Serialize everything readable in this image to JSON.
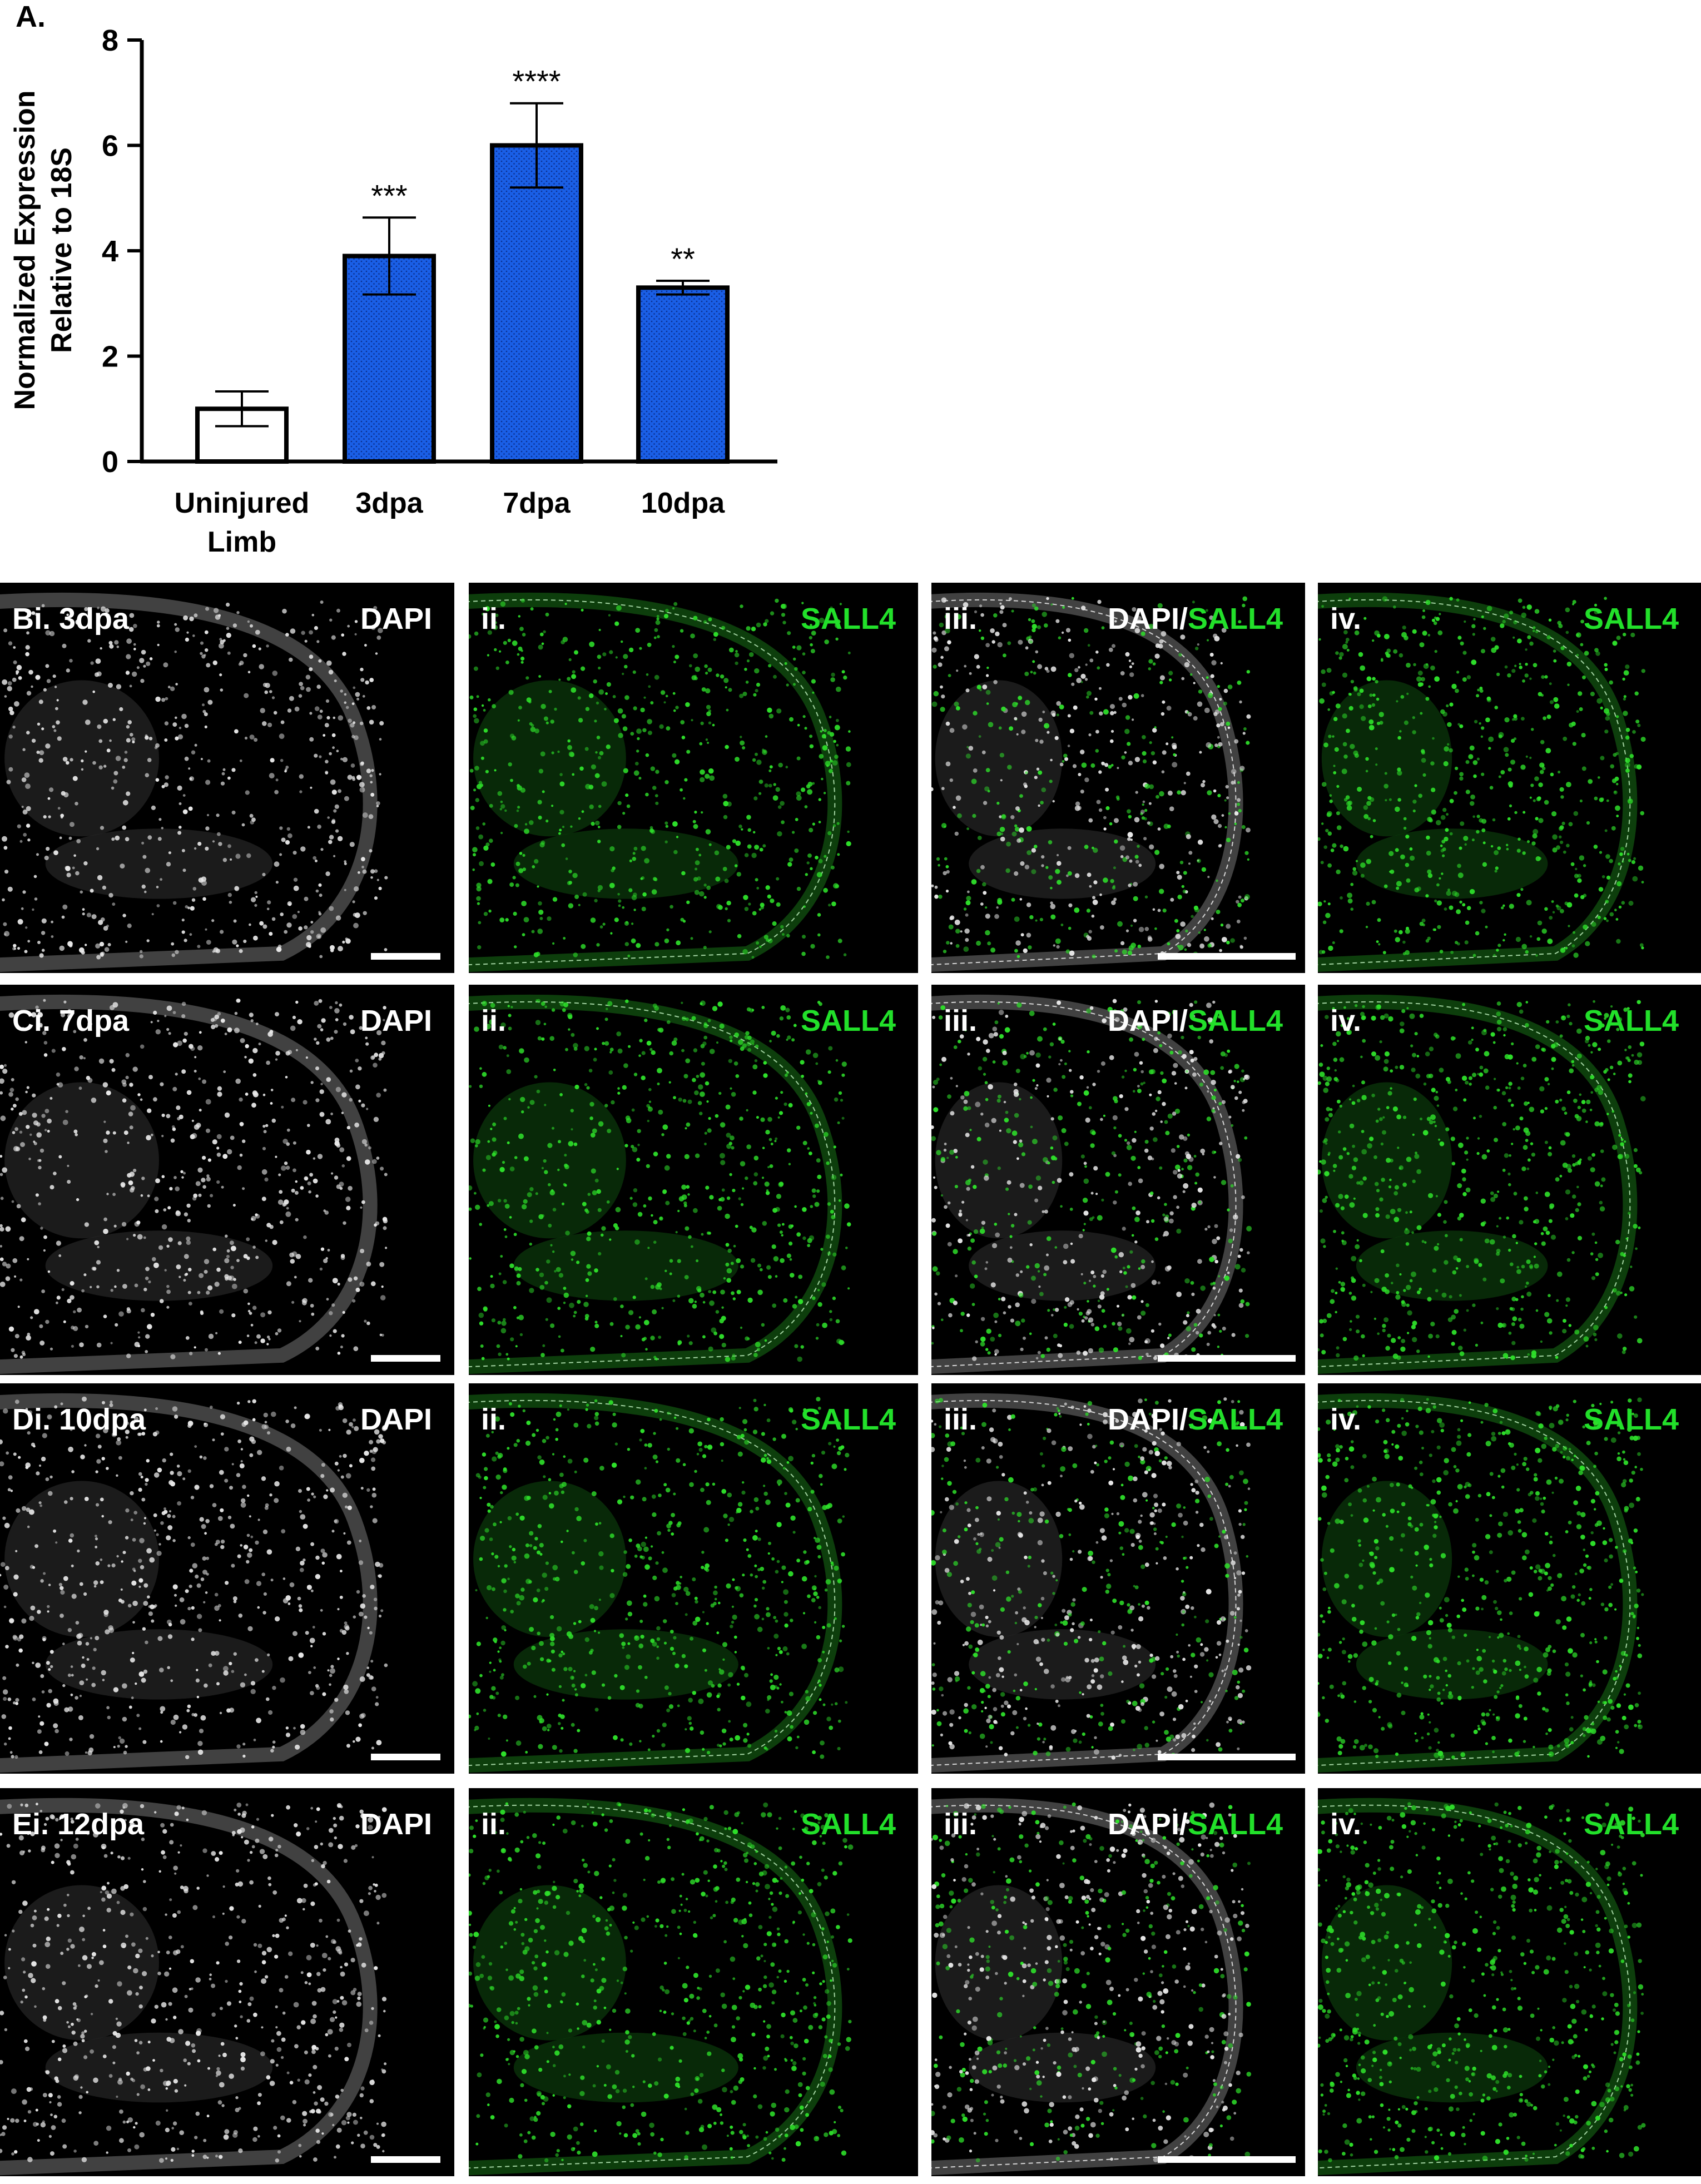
{
  "figure": {
    "panel_a_label": "A."
  },
  "chart_data": {
    "type": "bar",
    "categories": [
      "Uninjured Limb",
      "3dpa",
      "7dpa",
      "10dpa"
    ],
    "category_lines": [
      [
        "Uninjured",
        "Limb"
      ],
      [
        "3dpa"
      ],
      [
        "7dpa"
      ],
      [
        "10dpa"
      ]
    ],
    "values": [
      1.0,
      3.9,
      6.0,
      3.3
    ],
    "error": [
      0.33,
      0.73,
      0.8,
      0.13
    ],
    "significance": [
      "",
      "***",
      "****",
      "**"
    ],
    "bar_fill": [
      "#ffffff",
      "#1a5fe6",
      "#1a5fe6",
      "#1a5fe6"
    ],
    "ylabel_lines": [
      "Normalized Expression",
      "Relative to 18S"
    ],
    "xlabel": "",
    "ylim": [
      0,
      8
    ],
    "yticks": [
      0,
      2,
      4,
      6,
      8
    ],
    "grid": false,
    "legend": "none"
  },
  "image_rows": [
    {
      "label_i": "Bi. 3dpa",
      "panels": [
        {
          "left": "",
          "right_white": "DAPI",
          "right_green": "",
          "scalebar": true,
          "channel": "dapi"
        },
        {
          "left": "ii.",
          "right_white": "",
          "right_green": "SALL4",
          "scalebar": false,
          "channel": "sall4"
        },
        {
          "left": "iii.",
          "right_white": "DAPI/",
          "right_green": "SALL4",
          "scalebar": true,
          "channel": "merge"
        },
        {
          "left": "iv.",
          "right_white": "",
          "right_green": "SALL4",
          "scalebar": false,
          "channel": "sall4"
        }
      ]
    },
    {
      "label_i": "Ci. 7dpa",
      "panels": [
        {
          "left": "",
          "right_white": "DAPI",
          "right_green": "",
          "scalebar": true,
          "channel": "dapi"
        },
        {
          "left": "ii.",
          "right_white": "",
          "right_green": "SALL4",
          "scalebar": false,
          "channel": "sall4"
        },
        {
          "left": "iii.",
          "right_white": "DAPI/",
          "right_green": "SALL4",
          "scalebar": true,
          "channel": "merge"
        },
        {
          "left": "iv.",
          "right_white": "",
          "right_green": "SALL4",
          "scalebar": false,
          "channel": "sall4"
        }
      ]
    },
    {
      "label_i": "Di. 10dpa",
      "panels": [
        {
          "left": "",
          "right_white": "DAPI",
          "right_green": "",
          "scalebar": true,
          "channel": "dapi"
        },
        {
          "left": "ii.",
          "right_white": "",
          "right_green": "SALL4",
          "scalebar": false,
          "channel": "sall4"
        },
        {
          "left": "iii.",
          "right_white": "DAPI/",
          "right_green": "SALL4",
          "scalebar": true,
          "channel": "merge"
        },
        {
          "left": "iv.",
          "right_white": "",
          "right_green": "SALL4",
          "scalebar": false,
          "channel": "sall4"
        }
      ]
    },
    {
      "label_i": "Ei. 12dpa",
      "panels": [
        {
          "left": "",
          "right_white": "DAPI",
          "right_green": "",
          "scalebar": true,
          "channel": "dapi"
        },
        {
          "left": "ii.",
          "right_white": "",
          "right_green": "SALL4",
          "scalebar": false,
          "channel": "sall4"
        },
        {
          "left": "iii.",
          "right_white": "DAPI/",
          "right_green": "SALL4",
          "scalebar": true,
          "channel": "merge"
        },
        {
          "left": "iv.",
          "right_white": "",
          "right_green": "SALL4",
          "scalebar": false,
          "channel": "sall4"
        }
      ]
    }
  ],
  "colors": {
    "dapi": "#e8e8e8",
    "sall4": "#2ee02a",
    "bar_blue": "#1a5fe6"
  }
}
